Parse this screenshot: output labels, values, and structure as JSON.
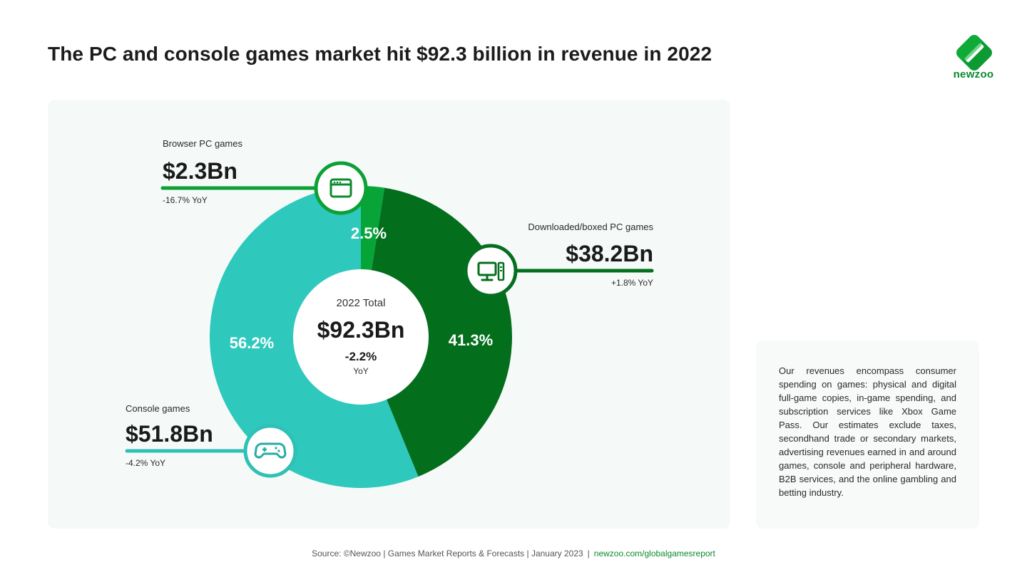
{
  "header": {
    "title": "The PC and console games market hit $92.3 billion in revenue in 2022",
    "logo_text": "newzoo"
  },
  "colors": {
    "console": "#2ec8bd",
    "downloaded": "#036e1c",
    "browser": "#07a538",
    "ring_bg": "#ffffff"
  },
  "chart_data": {
    "type": "pie",
    "center": {
      "label": "2022 Total",
      "value": "$92.3Bn",
      "change": "-2.2%",
      "change_unit": "YoY"
    },
    "segments": [
      {
        "name": "Browser PC games",
        "share": 2.5,
        "share_label": "2.5%",
        "value_label": "$2.3Bn",
        "yoy_label": "-16.7% YoY",
        "icon": "browser-window-icon"
      },
      {
        "name": "Downloaded/boxed PC games",
        "share": 41.3,
        "share_label": "41.3%",
        "value_label": "$38.2Bn",
        "yoy_label": "+1.8% YoY",
        "icon": "desktop-computer-icon"
      },
      {
        "name": "Console games",
        "share": 56.2,
        "share_label": "56.2%",
        "value_label": "$51.8Bn",
        "yoy_label": "-4.2% YoY",
        "icon": "gamepad-icon"
      }
    ]
  },
  "note": {
    "text": "Our revenues encompass consumer spending on games: physical and digital full-game copies, in-game spending, and subscription services like Xbox Game Pass. Our estimates exclude taxes, secondhand trade or secondary markets, advertising revenues earned in and around games, console and peripheral hardware, B2B services, and the online gambling and betting industry."
  },
  "footer": {
    "source": "Source: ©Newzoo | Games Market Reports & Forecasts | January 2023",
    "separator": "|",
    "link": "newzoo.com/globalgamesreport"
  }
}
